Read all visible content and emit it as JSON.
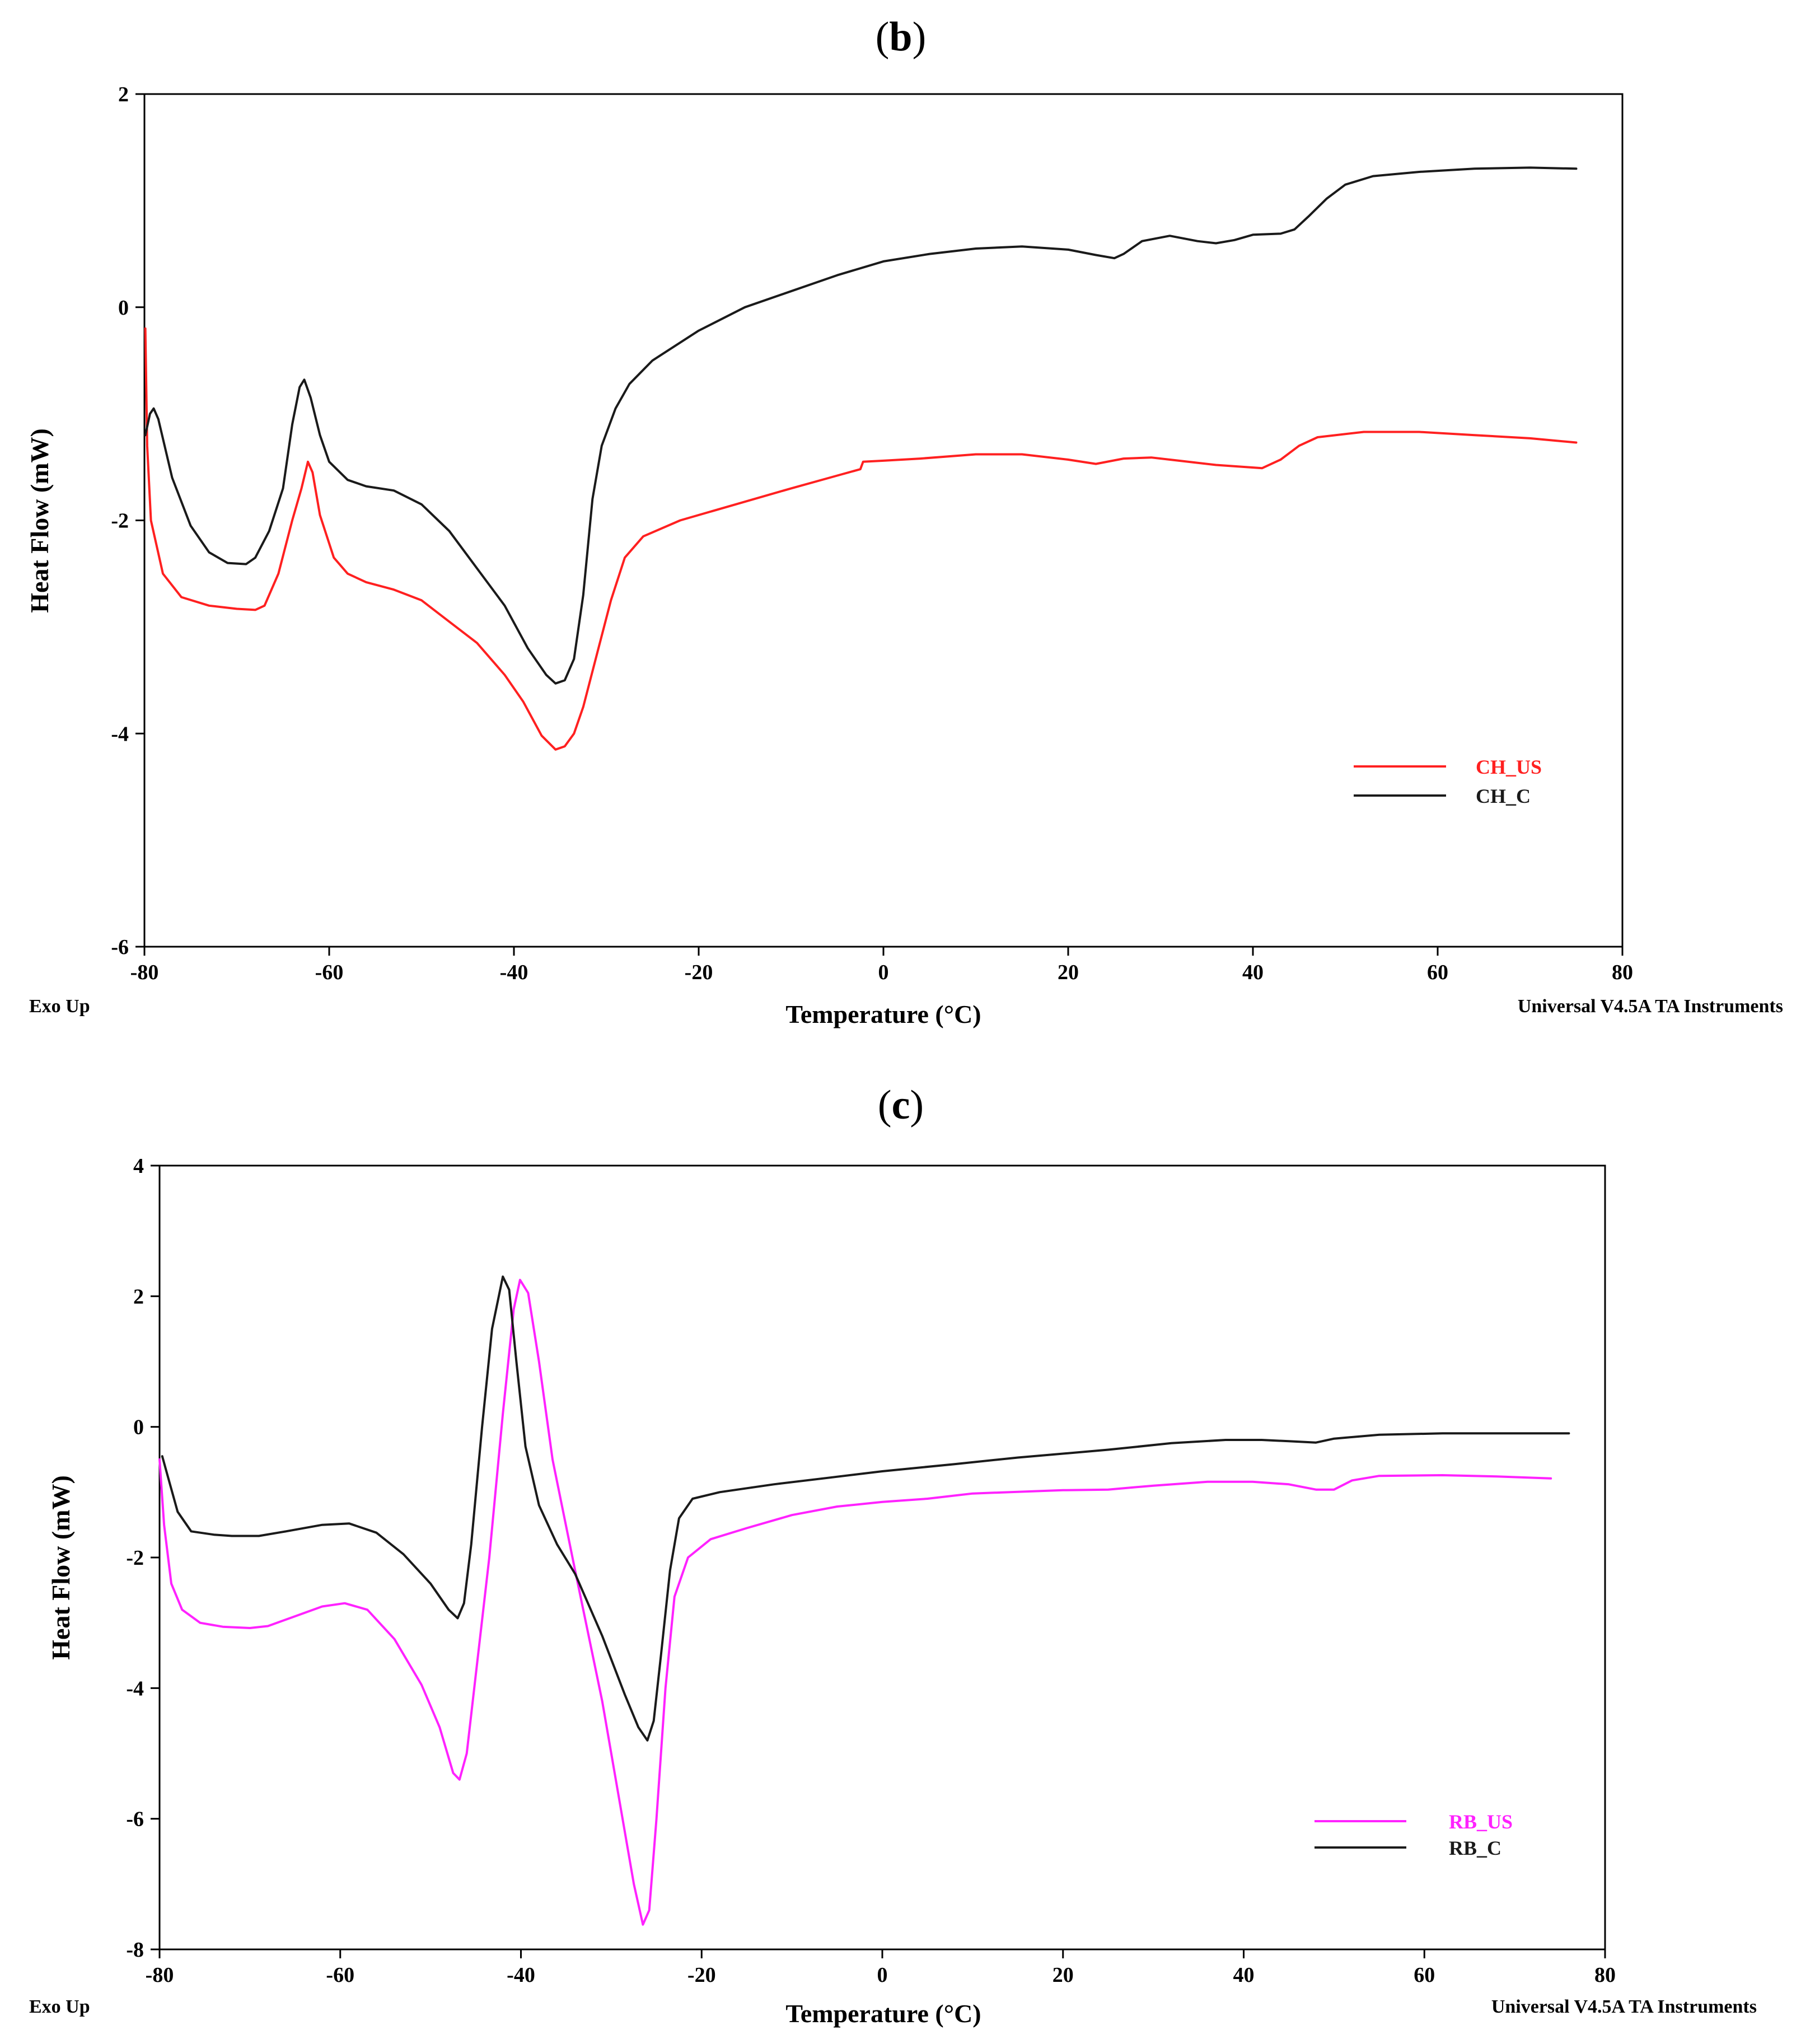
{
  "chart_data": [
    {
      "panel": "b",
      "type": "line",
      "title": "(b)",
      "xlabel": "Temperature (°C)",
      "ylabel": "Heat Flow (mW)",
      "xlim": [
        -80,
        80
      ],
      "ylim": [
        -6,
        2
      ],
      "xticks": [
        -80,
        -60,
        -40,
        -20,
        0,
        20,
        40,
        60,
        80
      ],
      "yticks": [
        -6,
        -4,
        -2,
        0,
        2
      ],
      "xtick_labels": [
        "-80",
        "-60",
        "-40",
        "-20",
        "0",
        "20",
        "40",
        "60",
        "80"
      ],
      "ytick_labels": [
        "-6",
        "-4",
        "-2",
        "0",
        "2"
      ],
      "footer_left": "Exo Up",
      "footer_right": "Universal V4.5A TA Instruments",
      "legend_position": "lower-right",
      "series": [
        {
          "name": "CH_US",
          "color": "#ff2020",
          "points": [
            [
              -79.9,
              -0.2
            ],
            [
              -79.7,
              -1.3
            ],
            [
              -79.3,
              -2.0
            ],
            [
              -78,
              -2.5
            ],
            [
              -76,
              -2.72
            ],
            [
              -73,
              -2.8
            ],
            [
              -70,
              -2.83
            ],
            [
              -68,
              -2.84
            ],
            [
              -67,
              -2.8
            ],
            [
              -65.5,
              -2.5
            ],
            [
              -64,
              -2.0
            ],
            [
              -63,
              -1.7
            ],
            [
              -62.3,
              -1.45
            ],
            [
              -61.8,
              -1.55
            ],
            [
              -61,
              -1.95
            ],
            [
              -59.5,
              -2.35
            ],
            [
              -58,
              -2.5
            ],
            [
              -56,
              -2.58
            ],
            [
              -53,
              -2.65
            ],
            [
              -50,
              -2.75
            ],
            [
              -47,
              -2.95
            ],
            [
              -44,
              -3.15
            ],
            [
              -41,
              -3.45
            ],
            [
              -39,
              -3.7
            ],
            [
              -37,
              -4.02
            ],
            [
              -35.5,
              -4.15
            ],
            [
              -34.5,
              -4.12
            ],
            [
              -33.5,
              -4.0
            ],
            [
              -32.5,
              -3.75
            ],
            [
              -31,
              -3.25
            ],
            [
              -29.5,
              -2.75
            ],
            [
              -28,
              -2.35
            ],
            [
              -26,
              -2.15
            ],
            [
              -22,
              -2.0
            ],
            [
              -16,
              -1.85
            ],
            [
              -10,
              -1.7
            ],
            [
              -5,
              -1.58
            ],
            [
              -2.5,
              -1.52
            ],
            [
              -2.2,
              -1.45
            ],
            [
              0,
              -1.44
            ],
            [
              4,
              -1.42
            ],
            [
              10,
              -1.38
            ],
            [
              15,
              -1.38
            ],
            [
              20,
              -1.43
            ],
            [
              23,
              -1.47
            ],
            [
              26,
              -1.42
            ],
            [
              29,
              -1.41
            ],
            [
              32,
              -1.44
            ],
            [
              36,
              -1.48
            ],
            [
              41,
              -1.51
            ],
            [
              43,
              -1.43
            ],
            [
              45,
              -1.3
            ],
            [
              47,
              -1.22
            ],
            [
              52,
              -1.17
            ],
            [
              58,
              -1.17
            ],
            [
              64,
              -1.2
            ],
            [
              70,
              -1.23
            ],
            [
              75,
              -1.27
            ]
          ]
        },
        {
          "name": "CH_C",
          "color": "#1a1a1a",
          "points": [
            [
              -79.9,
              -1.2
            ],
            [
              -79.4,
              -1.0
            ],
            [
              -79,
              -0.95
            ],
            [
              -78.5,
              -1.05
            ],
            [
              -77,
              -1.6
            ],
            [
              -75,
              -2.05
            ],
            [
              -73,
              -2.3
            ],
            [
              -71,
              -2.4
            ],
            [
              -69,
              -2.41
            ],
            [
              -68,
              -2.35
            ],
            [
              -66.5,
              -2.1
            ],
            [
              -65,
              -1.7
            ],
            [
              -64,
              -1.1
            ],
            [
              -63.2,
              -0.75
            ],
            [
              -62.7,
              -0.68
            ],
            [
              -62,
              -0.85
            ],
            [
              -61,
              -1.2
            ],
            [
              -60,
              -1.45
            ],
            [
              -58,
              -1.62
            ],
            [
              -56,
              -1.68
            ],
            [
              -53,
              -1.72
            ],
            [
              -50,
              -1.85
            ],
            [
              -47,
              -2.1
            ],
            [
              -44,
              -2.45
            ],
            [
              -41,
              -2.8
            ],
            [
              -38.5,
              -3.2
            ],
            [
              -36.5,
              -3.45
            ],
            [
              -35.5,
              -3.53
            ],
            [
              -34.5,
              -3.5
            ],
            [
              -33.5,
              -3.3
            ],
            [
              -32.5,
              -2.7
            ],
            [
              -31.5,
              -1.8
            ],
            [
              -30.5,
              -1.3
            ],
            [
              -29,
              -0.95
            ],
            [
              -27.5,
              -0.72
            ],
            [
              -25,
              -0.5
            ],
            [
              -20,
              -0.22
            ],
            [
              -15,
              0.0
            ],
            [
              -10,
              0.15
            ],
            [
              -5,
              0.3
            ],
            [
              0,
              0.43
            ],
            [
              5,
              0.5
            ],
            [
              10,
              0.55
            ],
            [
              15,
              0.57
            ],
            [
              20,
              0.54
            ],
            [
              23,
              0.49
            ],
            [
              25,
              0.46
            ],
            [
              26,
              0.5
            ],
            [
              28,
              0.62
            ],
            [
              31,
              0.67
            ],
            [
              34,
              0.62
            ],
            [
              36,
              0.6
            ],
            [
              38,
              0.63
            ],
            [
              40,
              0.68
            ],
            [
              43,
              0.69
            ],
            [
              44.5,
              0.73
            ],
            [
              46,
              0.85
            ],
            [
              48,
              1.02
            ],
            [
              50,
              1.15
            ],
            [
              53,
              1.23
            ],
            [
              58,
              1.27
            ],
            [
              64,
              1.3
            ],
            [
              70,
              1.31
            ],
            [
              75,
              1.3
            ]
          ]
        }
      ]
    },
    {
      "panel": "c",
      "type": "line",
      "title": "(c)",
      "xlabel": "Temperature (°C)",
      "ylabel": "Heat Flow (mW)",
      "xlim": [
        -80,
        80
      ],
      "ylim": [
        -8,
        4
      ],
      "xticks": [
        -80,
        -60,
        -40,
        -20,
        0,
        20,
        40,
        60,
        80
      ],
      "yticks": [
        -8,
        -6,
        -4,
        -2,
        0,
        2,
        4
      ],
      "xtick_labels": [
        "-80",
        "-60",
        "-40",
        "-20",
        "0",
        "20",
        "40",
        "60",
        "80"
      ],
      "ytick_labels": [
        "-8",
        "-6",
        "-4",
        "-2",
        "0",
        "2",
        "4"
      ],
      "footer_left": "Exo Up",
      "footer_right": "Universal V4.5A TA Instruments",
      "legend_position": "lower-right",
      "series": [
        {
          "name": "RB_US",
          "color": "#ff22ff",
          "points": [
            [
              -80,
              -0.5
            ],
            [
              -79.5,
              -1.5
            ],
            [
              -78.7,
              -2.4
            ],
            [
              -77.5,
              -2.8
            ],
            [
              -75.5,
              -3.0
            ],
            [
              -73,
              -3.06
            ],
            [
              -70,
              -3.08
            ],
            [
              -68,
              -3.05
            ],
            [
              -65,
              -2.9
            ],
            [
              -62,
              -2.75
            ],
            [
              -59.5,
              -2.7
            ],
            [
              -57,
              -2.8
            ],
            [
              -54,
              -3.25
            ],
            [
              -51,
              -3.95
            ],
            [
              -49,
              -4.6
            ],
            [
              -47.5,
              -5.3
            ],
            [
              -46.8,
              -5.4
            ],
            [
              -46,
              -5.0
            ],
            [
              -45,
              -3.8
            ],
            [
              -43.5,
              -2.0
            ],
            [
              -42,
              0.2
            ],
            [
              -40.8,
              1.8
            ],
            [
              -40.1,
              2.25
            ],
            [
              -39.2,
              2.05
            ],
            [
              -38,
              1.0
            ],
            [
              -36.5,
              -0.5
            ],
            [
              -34,
              -2.2
            ],
            [
              -31,
              -4.2
            ],
            [
              -29,
              -5.8
            ],
            [
              -27.5,
              -7.0
            ],
            [
              -26.5,
              -7.62
            ],
            [
              -25.8,
              -7.4
            ],
            [
              -25,
              -6.0
            ],
            [
              -24,
              -4.0
            ],
            [
              -23,
              -2.6
            ],
            [
              -21.5,
              -2.0
            ],
            [
              -19,
              -1.72
            ],
            [
              -15,
              -1.55
            ],
            [
              -10,
              -1.35
            ],
            [
              -5,
              -1.22
            ],
            [
              0,
              -1.15
            ],
            [
              5,
              -1.1
            ],
            [
              10,
              -1.02
            ],
            [
              20,
              -0.97
            ],
            [
              25,
              -0.96
            ],
            [
              30,
              -0.9
            ],
            [
              36,
              -0.84
            ],
            [
              41,
              -0.84
            ],
            [
              45,
              -0.88
            ],
            [
              48,
              -0.96
            ],
            [
              50,
              -0.96
            ],
            [
              52,
              -0.82
            ],
            [
              55,
              -0.75
            ],
            [
              62,
              -0.74
            ],
            [
              68,
              -0.76
            ],
            [
              74,
              -0.79
            ]
          ]
        },
        {
          "name": "RB_C",
          "color": "#1a1a1a",
          "points": [
            [
              -79.7,
              -0.45
            ],
            [
              -79,
              -0.8
            ],
            [
              -78,
              -1.3
            ],
            [
              -76.5,
              -1.6
            ],
            [
              -74,
              -1.65
            ],
            [
              -72,
              -1.67
            ],
            [
              -69,
              -1.67
            ],
            [
              -66,
              -1.6
            ],
            [
              -62,
              -1.5
            ],
            [
              -59,
              -1.48
            ],
            [
              -56,
              -1.62
            ],
            [
              -53,
              -1.95
            ],
            [
              -50,
              -2.4
            ],
            [
              -48,
              -2.8
            ],
            [
              -47,
              -2.93
            ],
            [
              -46.3,
              -2.7
            ],
            [
              -45.5,
              -1.8
            ],
            [
              -44.3,
              0.0
            ],
            [
              -43.2,
              1.5
            ],
            [
              -42,
              2.3
            ],
            [
              -41.3,
              2.1
            ],
            [
              -40.5,
              1.0
            ],
            [
              -39.5,
              -0.3
            ],
            [
              -38,
              -1.2
            ],
            [
              -36,
              -1.8
            ],
            [
              -34,
              -2.25
            ],
            [
              -31,
              -3.2
            ],
            [
              -28.5,
              -4.1
            ],
            [
              -27,
              -4.6
            ],
            [
              -26,
              -4.8
            ],
            [
              -25.3,
              -4.5
            ],
            [
              -24.5,
              -3.5
            ],
            [
              -23.5,
              -2.2
            ],
            [
              -22.5,
              -1.4
            ],
            [
              -21,
              -1.1
            ],
            [
              -18,
              -1.0
            ],
            [
              -12,
              -0.88
            ],
            [
              -6,
              -0.78
            ],
            [
              0,
              -0.68
            ],
            [
              8,
              -0.57
            ],
            [
              15,
              -0.47
            ],
            [
              25,
              -0.35
            ],
            [
              32,
              -0.25
            ],
            [
              38,
              -0.2
            ],
            [
              42,
              -0.2
            ],
            [
              45,
              -0.22
            ],
            [
              48,
              -0.24
            ],
            [
              50,
              -0.18
            ],
            [
              55,
              -0.12
            ],
            [
              62,
              -0.1
            ],
            [
              70,
              -0.1
            ],
            [
              76,
              -0.1
            ]
          ]
        }
      ]
    }
  ]
}
